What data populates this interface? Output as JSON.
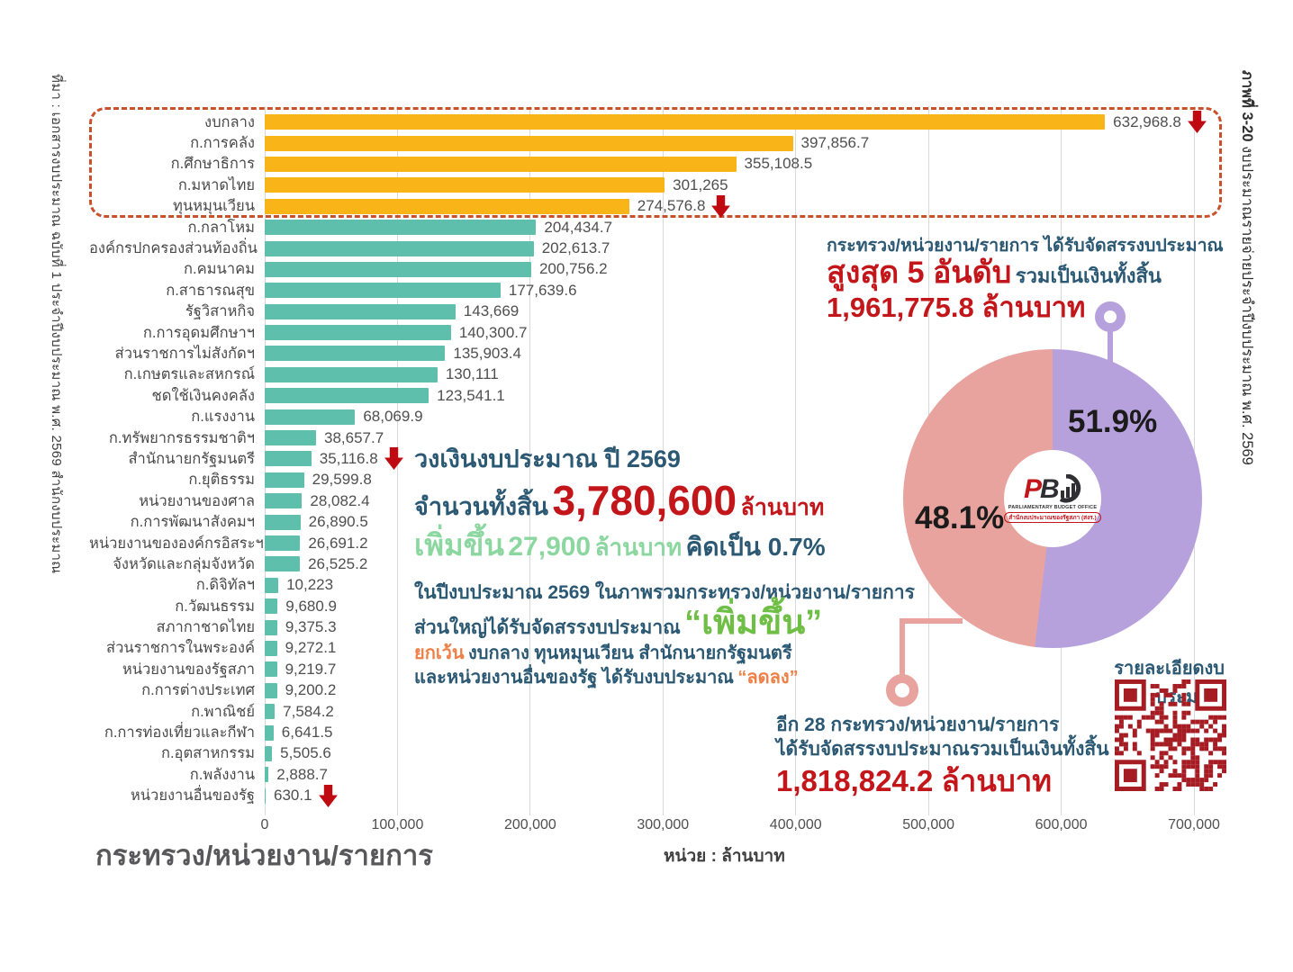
{
  "figure_caption": {
    "label": "ภาพที่ 3-20",
    "text": "งบประมาณรายจ่ายประจำปีงบประมาณ พ.ศ. 2569"
  },
  "source_caption": "ที่มา : เอกสารงบประมาณ ฉบับที่ 1 ประจำปีงบประมาณ พ.ศ. 2569 สำนักงบประมาณ",
  "colors": {
    "top5_bar": "#f9b417",
    "other_bar": "#5fbfad",
    "dashed_box": "#c8512c",
    "red": "#c3161b",
    "arrow_red": "#c00a12",
    "dark_blue": "#2b5873",
    "mint_green": "#8cd7a0",
    "bright_green": "#6fbe45",
    "orange": "#ef7f46",
    "purple": "#b7a1dd",
    "pink": "#e9a39e",
    "grid": "#d9d9d9",
    "qr": "#a51d23"
  },
  "chart_data": [
    {
      "type": "bar",
      "orientation": "horizontal",
      "title": "",
      "xlabel": "หน่วย : ล้านบาท",
      "ylabel": "กระทรวง/หน่วยงาน/รายการ",
      "xlim": [
        0,
        700000
      ],
      "x_ticks": [
        "0",
        "100,000",
        "200,000",
        "300,000",
        "400,000",
        "500,000",
        "600,000",
        "700,000"
      ],
      "grid": true,
      "rows": [
        {
          "label": "งบกลาง",
          "value": 632968.8,
          "display": "632,968.8",
          "group": "top5",
          "arrow": true
        },
        {
          "label": "ก.การคลัง",
          "value": 397856.7,
          "display": "397,856.7",
          "group": "top5",
          "arrow": false
        },
        {
          "label": "ก.ศึกษาธิการ",
          "value": 355108.5,
          "display": "355,108.5",
          "group": "top5",
          "arrow": false
        },
        {
          "label": "ก.มหาดไทย",
          "value": 301265,
          "display": "301,265",
          "group": "top5",
          "arrow": false
        },
        {
          "label": "ทุนหมุนเวียน",
          "value": 274576.8,
          "display": "274,576.8",
          "group": "top5",
          "arrow": true
        },
        {
          "label": "ก.กลาโหม",
          "value": 204434.7,
          "display": "204,434.7",
          "group": "other",
          "arrow": false
        },
        {
          "label": "องค์กรปกครองส่วนท้องถิ่น",
          "value": 202613.7,
          "display": "202,613.7",
          "group": "other",
          "arrow": false
        },
        {
          "label": "ก.คมนาคม",
          "value": 200756.2,
          "display": "200,756.2",
          "group": "other",
          "arrow": false
        },
        {
          "label": "ก.สาธารณสุข",
          "value": 177639.6,
          "display": "177,639.6",
          "group": "other",
          "arrow": false
        },
        {
          "label": "รัฐวิสาหกิจ",
          "value": 143669,
          "display": "143,669",
          "group": "other",
          "arrow": false
        },
        {
          "label": "ก.การอุดมศึกษาฯ",
          "value": 140300.7,
          "display": "140,300.7",
          "group": "other",
          "arrow": false
        },
        {
          "label": "ส่วนราชการไม่สังกัดฯ",
          "value": 135903.4,
          "display": "135,903.4",
          "group": "other",
          "arrow": false
        },
        {
          "label": "ก.เกษตรและสหกรณ์",
          "value": 130111,
          "display": "130,111",
          "group": "other",
          "arrow": false
        },
        {
          "label": "ชดใช้เงินคงคลัง",
          "value": 123541.1,
          "display": "123,541.1",
          "group": "other",
          "arrow": false
        },
        {
          "label": "ก.แรงงาน",
          "value": 68069.9,
          "display": "68,069.9",
          "group": "other",
          "arrow": false
        },
        {
          "label": "ก.ทรัพยากรธรรมชาติฯ",
          "value": 38657.7,
          "display": "38,657.7",
          "group": "other",
          "arrow": false
        },
        {
          "label": "สำนักนายกรัฐมนตรี",
          "value": 35116.8,
          "display": "35,116.8",
          "group": "other",
          "arrow": true
        },
        {
          "label": "ก.ยุติธรรม",
          "value": 29599.8,
          "display": "29,599.8",
          "group": "other",
          "arrow": false
        },
        {
          "label": "หน่วยงานของศาล",
          "value": 28082.4,
          "display": "28,082.4",
          "group": "other",
          "arrow": false
        },
        {
          "label": "ก.การพัฒนาสังคมฯ",
          "value": 26890.5,
          "display": "26,890.5",
          "group": "other",
          "arrow": false
        },
        {
          "label": "หน่วยงานขององค์กรอิสระฯ",
          "value": 26691.2,
          "display": "26,691.2",
          "group": "other",
          "arrow": false
        },
        {
          "label": "จังหวัดและกลุ่มจังหวัด",
          "value": 26525.2,
          "display": "26,525.2",
          "group": "other",
          "arrow": false
        },
        {
          "label": "ก.ดิจิทัลฯ",
          "value": 10223,
          "display": "10,223",
          "group": "other",
          "arrow": false
        },
        {
          "label": "ก.วัฒนธรรม",
          "value": 9680.9,
          "display": "9,680.9",
          "group": "other",
          "arrow": false
        },
        {
          "label": "สภากาชาดไทย",
          "value": 9375.3,
          "display": "9,375.3",
          "group": "other",
          "arrow": false
        },
        {
          "label": "ส่วนราชการในพระองค์",
          "value": 9272.1,
          "display": "9,272.1",
          "group": "other",
          "arrow": false
        },
        {
          "label": "หน่วยงานของรัฐสภา",
          "value": 9219.7,
          "display": "9,219.7",
          "group": "other",
          "arrow": false
        },
        {
          "label": "ก.การต่างประเทศ",
          "value": 9200.2,
          "display": "9,200.2",
          "group": "other",
          "arrow": false
        },
        {
          "label": "ก.พาณิชย์",
          "value": 7584.2,
          "display": "7,584.2",
          "group": "other",
          "arrow": false
        },
        {
          "label": "ก.การท่องเที่ยวและกีฬา",
          "value": 6641.5,
          "display": "6,641.5",
          "group": "other",
          "arrow": false
        },
        {
          "label": "ก.อุตสาหกรรม",
          "value": 5505.6,
          "display": "5,505.6",
          "group": "other",
          "arrow": false
        },
        {
          "label": "ก.พลังงาน",
          "value": 2888.7,
          "display": "2,888.7",
          "group": "other",
          "arrow": false
        },
        {
          "label": "หน่วยงานอื่นของรัฐ",
          "value": 630.1,
          "display": "630.1",
          "group": "other",
          "arrow": true
        }
      ]
    },
    {
      "type": "pie",
      "donut": true,
      "slices": [
        {
          "label": "สูงสุด 5 อันดับ",
          "value": 51.9,
          "display": "51.9%",
          "color": "#b7a1dd"
        },
        {
          "label": "อีก 28 กระทรวง/หน่วยงาน/รายการ",
          "value": 48.1,
          "display": "48.1%",
          "color": "#e9a39e"
        }
      ]
    }
  ],
  "axis": {
    "title": "กระทรวง/หน่วยงาน/รายการ",
    "unit": "หน่วย : ล้านบาท"
  },
  "notes": {
    "top5": {
      "line1": "กระทรวง/หน่วยงาน/รายการ ได้รับจัดสรรงบประมาณ",
      "highlight": "สูงสุด 5 อันดับ",
      "rest": "รวมเป็นเงินทั้งสิ้น",
      "amount": "1,961,775.8 ล้านบาท"
    },
    "total": {
      "title": "วงเงินงบประมาณ ปี 2569",
      "label": "จำนวนทั้งสิ้น",
      "amount": "3,780,600",
      "unit": "ล้านบาท",
      "increase_label": "เพิ่มขึ้น",
      "increase_amount": "27,900",
      "increase_unit": "ล้านบาท",
      "share": "คิดเป็น 0.7%"
    },
    "overview": {
      "line1": "ในปีงบประมาณ 2569 ในภาพรวมกระทรวง/หน่วยงาน/รายการ",
      "line2": "ส่วนใหญ่ได้รับจัดสรรงบประมาณ",
      "line2_highlight": "“เพิ่มขึ้น”",
      "except_label": "ยกเว้น",
      "except_text": "งบกลาง ทุนหมุนเวียน สำนักนายกรัฐมนตรี",
      "line4": "และหน่วยงานอื่นของรัฐ ได้รับงบประมาณ",
      "line4_highlight": "“ลดลง”"
    },
    "others": {
      "line1": "อีก 28 กระทรวง/หน่วยงาน/รายการ",
      "line2": "ได้รับจัดสรรงบประมาณรวมเป็นเงินทั้งสิ้น",
      "amount": "1,818,824.2 ล้านบาท"
    },
    "qr_label": "รายละเอียดงบประมาณ"
  },
  "logo": {
    "p": "P",
    "b": "B",
    "line1": "PARLIAMENTARY BUDGET OFFICE",
    "line2": "สำนักงบประมาณของรัฐสภา (สงร.)"
  }
}
